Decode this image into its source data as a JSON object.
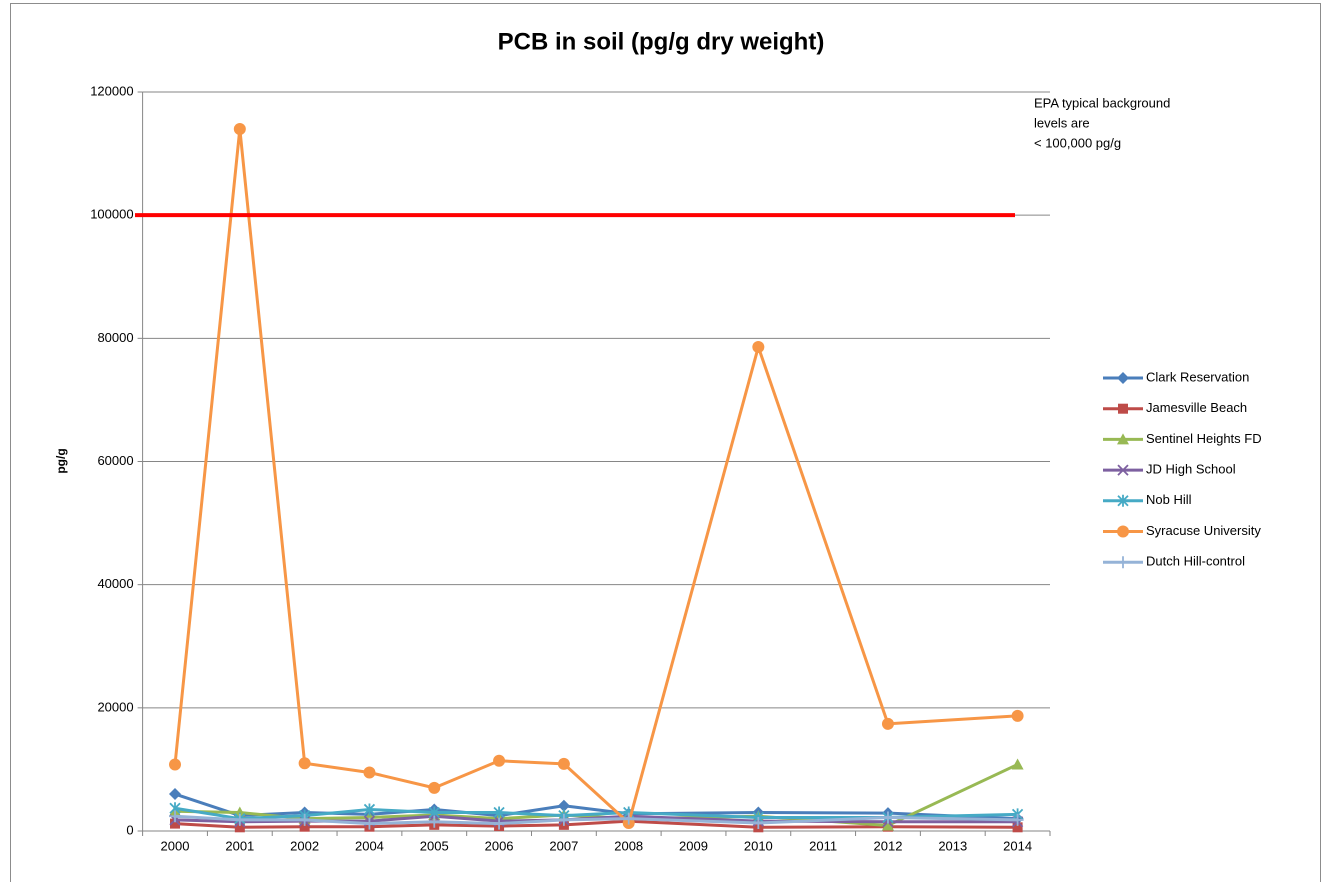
{
  "chart_data": {
    "type": "line",
    "title": "PCB in soil  (pg/g dry weight)",
    "y_label": "pg/g",
    "categories": [
      "2000",
      "2001",
      "2002",
      "2004",
      "2005",
      "2006",
      "2007",
      "2008",
      "2009",
      "2010",
      "2011",
      "2012",
      "2013",
      "2014"
    ],
    "ylim": [
      0,
      120000
    ],
    "yticks": [
      0,
      20000,
      40000,
      60000,
      80000,
      100000,
      120000
    ],
    "grid": true,
    "connect_gaps": true,
    "legend": "right",
    "reference_line": {
      "value": 100000,
      "color": "#ff0000"
    },
    "annotation": [
      "EPA typical background",
      "levels are",
      "< 100,000 pg/g"
    ],
    "series": [
      {
        "name": "Clark Reservation",
        "color": "#4a7ebb",
        "marker": "diamond",
        "values": [
          6000,
          2500,
          3000,
          2700,
          3500,
          2500,
          4100,
          2800,
          null,
          3000,
          null,
          2900,
          null,
          2000
        ]
      },
      {
        "name": "Jamesville Beach",
        "color": "#be4b48",
        "marker": "square",
        "values": [
          1200,
          600,
          700,
          700,
          1000,
          800,
          1000,
          1600,
          null,
          600,
          null,
          700,
          null,
          600
        ]
      },
      {
        "name": "Sentinel Heights FD",
        "color": "#98b954",
        "marker": "triangle",
        "values": [
          3200,
          3000,
          2000,
          2200,
          2600,
          2000,
          2600,
          2000,
          null,
          2400,
          null,
          900,
          null,
          10800
        ]
      },
      {
        "name": "JD High School",
        "color": "#7d60a0",
        "marker": "x",
        "values": [
          1800,
          1500,
          1600,
          1600,
          2400,
          1600,
          1800,
          2400,
          null,
          1600,
          null,
          1500,
          null,
          1500
        ]
      },
      {
        "name": "Nob Hill",
        "color": "#46aac5",
        "marker": "star",
        "values": [
          3700,
          2000,
          2500,
          3500,
          3000,
          3000,
          2500,
          3000,
          null,
          2200,
          null,
          2200,
          null,
          2700
        ]
      },
      {
        "name": "Syracuse University",
        "color": "#f79646",
        "marker": "circle",
        "values": [
          10800,
          114000,
          11000,
          9500,
          7000,
          11400,
          10900,
          1300,
          null,
          78600,
          null,
          17400,
          null,
          18700
        ]
      },
      {
        "name": "Dutch Hill-control",
        "color": "#95b3d7",
        "marker": "plus",
        "values": [
          2400,
          1800,
          1800,
          1200,
          1500,
          1200,
          1800,
          2000,
          null,
          1300,
          null,
          2200,
          null,
          1800
        ]
      }
    ]
  }
}
